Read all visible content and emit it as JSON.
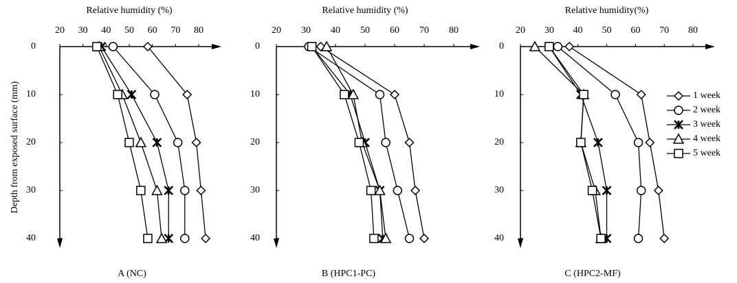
{
  "chart_data": [
    {
      "type": "line",
      "title": "Relative humidity (%)",
      "caption": "A (NC)",
      "y_label": "Depth from exposed surface (mm)",
      "categories": [
        0,
        10,
        20,
        30,
        40
      ],
      "xlim": [
        20,
        80
      ],
      "xticks": [
        20,
        30,
        40,
        50,
        60,
        70,
        80
      ],
      "series": [
        {
          "name": "1 week",
          "color": "#000000",
          "marker": "diamond",
          "values": [
            58,
            75,
            79,
            81,
            83
          ]
        },
        {
          "name": "2 week",
          "color": "#000000",
          "marker": "circle",
          "values": [
            43,
            61,
            71,
            74,
            74
          ]
        },
        {
          "name": "3 week",
          "color": "#000000",
          "marker": "star",
          "values": [
            38,
            51,
            62,
            67,
            67
          ]
        },
        {
          "name": "4 week",
          "color": "#000000",
          "marker": "triangle",
          "values": [
            37,
            47,
            55,
            62,
            64
          ]
        },
        {
          "name": "5 week",
          "color": "#000000",
          "marker": "square",
          "values": [
            36,
            45,
            50,
            55,
            58
          ]
        }
      ]
    },
    {
      "type": "line",
      "title": "Relative humidity (%)",
      "caption": "B (HPC1-PC)",
      "categories": [
        0,
        10,
        20,
        30,
        40
      ],
      "xlim": [
        20,
        80
      ],
      "xticks": [
        20,
        30,
        40,
        50,
        60,
        70,
        80
      ],
      "series": [
        {
          "name": "1 week",
          "color": "#000000",
          "marker": "diamond",
          "values": [
            35,
            60,
            65,
            67,
            70
          ]
        },
        {
          "name": "2 week",
          "color": "#000000",
          "marker": "circle",
          "values": [
            31,
            55,
            57,
            61,
            65
          ]
        },
        {
          "name": "3 week",
          "color": "#000000",
          "marker": "star",
          "values": [
            32,
            45,
            50,
            55,
            56
          ]
        },
        {
          "name": "4 week",
          "color": "#000000",
          "marker": "triangle",
          "values": [
            37,
            46,
            49,
            55,
            57
          ]
        },
        {
          "name": "5 week",
          "color": "#000000",
          "marker": "square",
          "values": [
            32,
            43,
            48,
            52,
            53
          ]
        }
      ]
    },
    {
      "type": "line",
      "title": "Relative humidity(%)",
      "caption": "C (HPC2-MF)",
      "legend": "right",
      "categories": [
        0,
        10,
        20,
        30,
        40
      ],
      "xlim": [
        20,
        80
      ],
      "xticks": [
        20,
        30,
        40,
        50,
        60,
        70,
        80
      ],
      "series": [
        {
          "name": "1 week",
          "color": "#000000",
          "marker": "diamond",
          "values": [
            37,
            62,
            65,
            68,
            70
          ]
        },
        {
          "name": "2 week",
          "color": "#000000",
          "marker": "circle",
          "values": [
            33,
            53,
            61,
            62,
            61
          ]
        },
        {
          "name": "3 week",
          "color": "#000000",
          "marker": "star",
          "values": [
            30,
            41,
            47,
            50,
            50
          ]
        },
        {
          "name": "4 week",
          "color": "#000000",
          "marker": "triangle",
          "values": [
            25,
            42,
            41,
            46,
            48
          ]
        },
        {
          "name": "5 week",
          "color": "#000000",
          "marker": "square",
          "values": [
            30,
            42,
            41,
            45,
            48
          ]
        }
      ]
    }
  ]
}
